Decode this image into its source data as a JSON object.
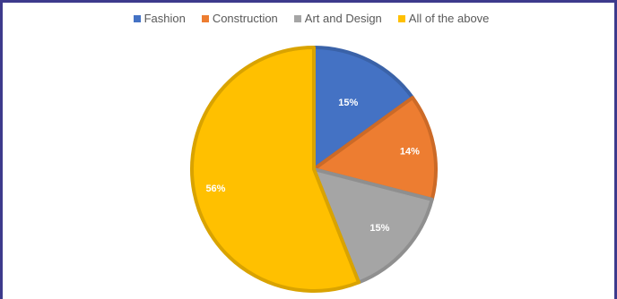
{
  "chart_data": {
    "type": "pie",
    "title": "",
    "legend_position": "top",
    "slices": [
      {
        "label": "Fashion",
        "value": 15,
        "display": "15%",
        "color": "#4472c4"
      },
      {
        "label": "Construction",
        "value": 14,
        "display": "14%",
        "color": "#ed7d31"
      },
      {
        "label": "Art and Design",
        "value": 15,
        "display": "15%",
        "color": "#a5a5a5"
      },
      {
        "label": "All of the above",
        "value": 56,
        "display": "56%",
        "color": "#ffc000"
      }
    ]
  }
}
